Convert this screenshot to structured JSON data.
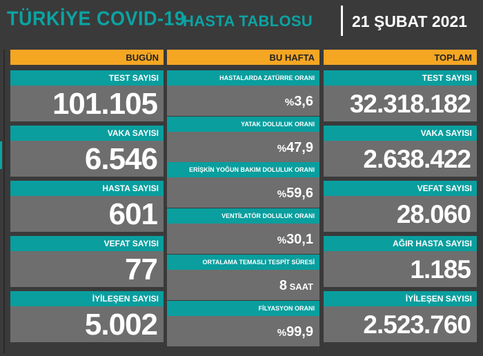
{
  "header": {
    "title_main": "TÜRKİYE COVID-19",
    "title_sub": "HASTA TABLOSU",
    "date": "21 ŞUBAT 2021"
  },
  "today": {
    "header": "BUGÜN",
    "cards": [
      {
        "label": "TEST SAYISI",
        "value": "101.105"
      },
      {
        "label": "VAKA SAYISI",
        "value": "6.546"
      },
      {
        "label": "HASTA SAYISI",
        "value": "601"
      },
      {
        "label": "VEFAT SAYISI",
        "value": "77"
      },
      {
        "label": "İYİLEŞEN SAYISI",
        "value": "5.002"
      }
    ]
  },
  "week": {
    "header": "BU HAFTA",
    "cards": [
      {
        "label": "HASTALARDA ZATÜRRE ORANI",
        "prefix": "%",
        "value": "3,6",
        "suffix": ""
      },
      {
        "label": "YATAK DOLULUK ORANI",
        "prefix": "%",
        "value": "47,9",
        "suffix": ""
      },
      {
        "label": "ERİŞKİN YOĞUN BAKIM DOLULUK ORANI",
        "prefix": "%",
        "value": "59,6",
        "suffix": ""
      },
      {
        "label": "VENTİLATÖR DOLULUK ORANI",
        "prefix": "%",
        "value": "30,1",
        "suffix": ""
      },
      {
        "label": "ORTALAMA TEMASLI TESPİT SÜRESİ",
        "prefix": "",
        "value": "8",
        "suffix": " SAAT"
      },
      {
        "label": "FİLYASYON ORANI",
        "prefix": "%",
        "value": "99,9",
        "suffix": ""
      }
    ]
  },
  "total": {
    "header": "TOPLAM",
    "cards": [
      {
        "label": "TEST SAYISI",
        "value": "32.318.182"
      },
      {
        "label": "VAKA SAYISI",
        "value": "2.638.422"
      },
      {
        "label": "VEFAT SAYISI",
        "value": "28.060"
      },
      {
        "label": "AĞIR HASTA SAYISI",
        "value": "1.185"
      },
      {
        "label": "İYİLEŞEN SAYISI",
        "value": "2.523.760"
      }
    ]
  },
  "colors": {
    "teal": "#0a9e9e",
    "orange": "#f5a623",
    "card_gray": "#6e6e6e",
    "background": "#3a3a3a"
  }
}
